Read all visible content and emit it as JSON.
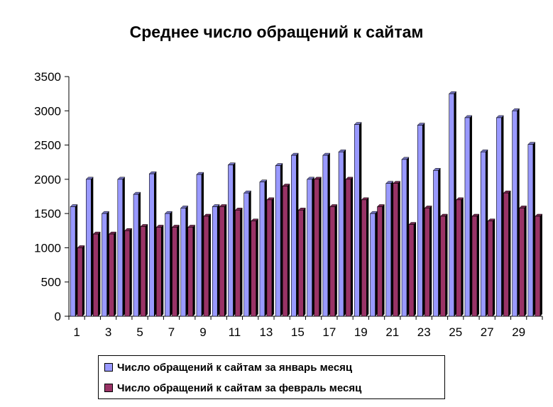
{
  "chart_data": {
    "type": "bar",
    "title": "Среднее число обращений к сайтам",
    "categories": [
      1,
      2,
      3,
      4,
      5,
      6,
      7,
      8,
      9,
      10,
      11,
      12,
      13,
      14,
      15,
      16,
      17,
      18,
      19,
      20,
      21,
      22,
      23,
      24,
      25,
      26,
      27,
      28,
      29,
      30
    ],
    "x_tick_labels": [
      "1",
      "3",
      "5",
      "7",
      "9",
      "11",
      "13",
      "15",
      "17",
      "19",
      "21",
      "23",
      "25",
      "27",
      "29"
    ],
    "y_tick_labels": [
      "0",
      "500",
      "1000",
      "1500",
      "2000",
      "2500",
      "3000",
      "3500"
    ],
    "ylim": [
      0,
      3500
    ],
    "grid": false,
    "legend_position": "bottom",
    "series": [
      {
        "name": "Число обращений к сайтам за январь месяц",
        "color": "#9999ff",
        "values": [
          1600,
          2000,
          1500,
          2000,
          1780,
          2080,
          1500,
          1580,
          2070,
          1600,
          2210,
          1800,
          1960,
          2200,
          2350,
          2000,
          2350,
          2400,
          2800,
          1500,
          1940,
          2290,
          2790,
          2130,
          3250,
          2900,
          2400,
          2900,
          3000,
          2510
        ]
      },
      {
        "name": "Число обращений к сайтам за февраль месяц",
        "color": "#993366",
        "values": [
          1000,
          1200,
          1200,
          1250,
          1310,
          1300,
          1300,
          1300,
          1460,
          1600,
          1550,
          1390,
          1700,
          1900,
          1550,
          2000,
          1600,
          2000,
          1700,
          1600,
          1940,
          1340,
          1580,
          1460,
          1700,
          1460,
          1390,
          1800,
          1580,
          1460
        ]
      }
    ]
  }
}
